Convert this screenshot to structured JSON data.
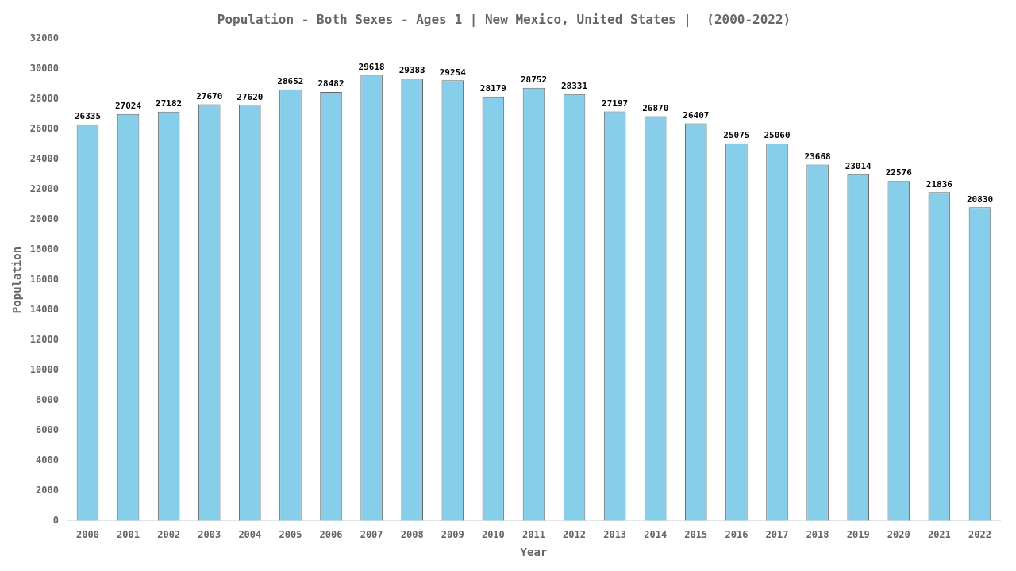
{
  "chart_data": {
    "type": "bar",
    "title": "Population - Both Sexes - Ages 1 | New Mexico, United States |  (2000-2022)",
    "x_label": "Year",
    "y_label": "Population",
    "categories": [
      "2000",
      "2001",
      "2002",
      "2003",
      "2004",
      "2005",
      "2006",
      "2007",
      "2008",
      "2009",
      "2010",
      "2011",
      "2012",
      "2013",
      "2014",
      "2015",
      "2016",
      "2017",
      "2018",
      "2019",
      "2020",
      "2021",
      "2022"
    ],
    "values": [
      26335,
      27024,
      27182,
      27670,
      27620,
      28652,
      28482,
      29618,
      29383,
      29254,
      28179,
      28752,
      28331,
      27197,
      26870,
      26407,
      25075,
      25060,
      23668,
      23014,
      22576,
      21836,
      20830
    ],
    "color": "#87ceeb",
    "ylim": [
      0,
      32000
    ],
    "yticks": [
      0,
      2000,
      4000,
      6000,
      8000,
      10000,
      12000,
      14000,
      16000,
      18000,
      20000,
      22000,
      24000,
      26000,
      28000,
      30000,
      32000
    ],
    "grid": false,
    "data_labels": true
  }
}
